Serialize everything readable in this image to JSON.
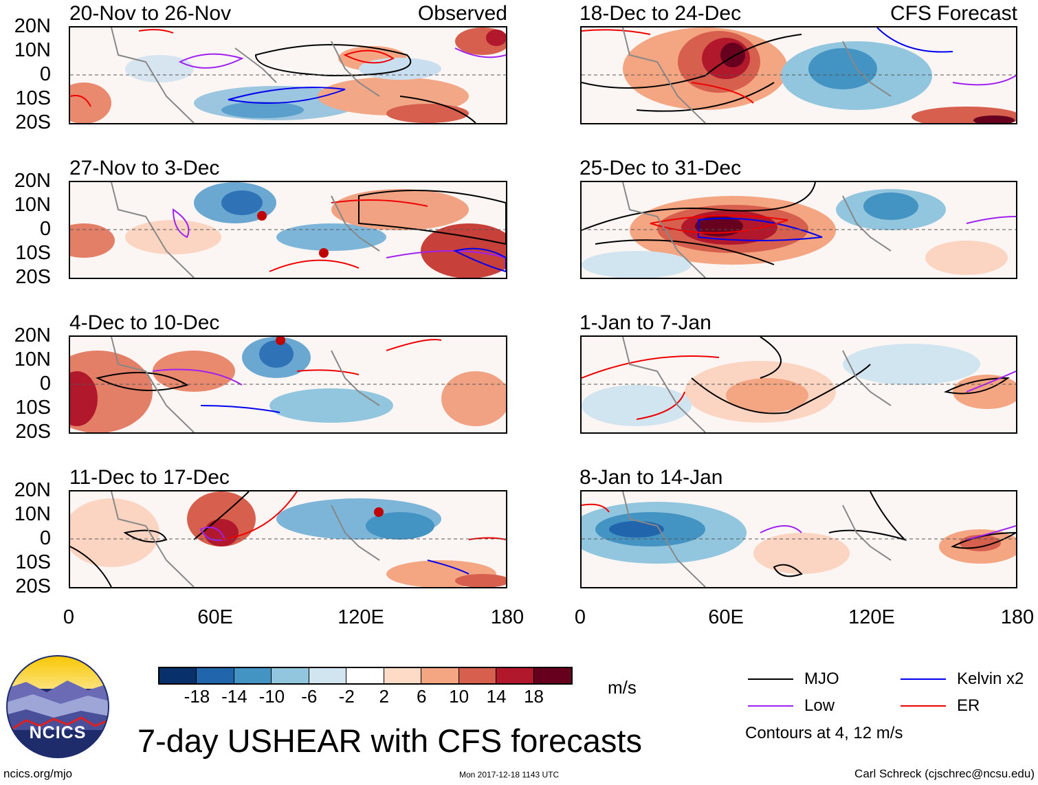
{
  "observed_label": "Observed",
  "forecast_label": "CFS Forecast",
  "lat_labels": [
    "20N",
    "10N",
    "0",
    "10S",
    "20S"
  ],
  "lon_labels": [
    "0",
    "60E",
    "120E",
    "180"
  ],
  "panels_left": [
    {
      "title": "20-Nov to 26-Nov"
    },
    {
      "title": "27-Nov to 3-Dec"
    },
    {
      "title": "4-Dec to 10-Dec"
    },
    {
      "title": "11-Dec to 17-Dec"
    }
  ],
  "panels_right": [
    {
      "title": "18-Dec to 24-Dec"
    },
    {
      "title": "25-Dec to 31-Dec"
    },
    {
      "title": "1-Jan to 7-Jan"
    },
    {
      "title": "8-Jan to 14-Jan"
    }
  ],
  "colorbar": {
    "colors": [
      "#08306b",
      "#2166ac",
      "#4393c3",
      "#92c5de",
      "#d1e5f0",
      "#ffffff",
      "#fddbc7",
      "#f4a582",
      "#d6604d",
      "#b2182b",
      "#67001f"
    ],
    "labels": [
      "-18",
      "-14",
      "-10",
      "-6",
      "-2",
      "2",
      "6",
      "10",
      "14",
      "18"
    ],
    "unit": "m/s"
  },
  "legend": {
    "items": [
      {
        "label": "MJO",
        "color": "#000000"
      },
      {
        "label": "Kelvin x2",
        "color": "#0000ee"
      },
      {
        "label": "Low",
        "color": "#a020f0"
      },
      {
        "label": "ER",
        "color": "#ee0000"
      }
    ],
    "contours_note": "Contours at 4, 12 m/s"
  },
  "logo_text": "NCICS",
  "main_title": "7-day USHEAR with CFS forecasts",
  "footer": {
    "site": "ncics.org/mjo",
    "timestamp": "Mon 2017-12-18 1143 UTC",
    "author": "Carl Schreck (cjschrec@ncsu.edu)"
  }
}
